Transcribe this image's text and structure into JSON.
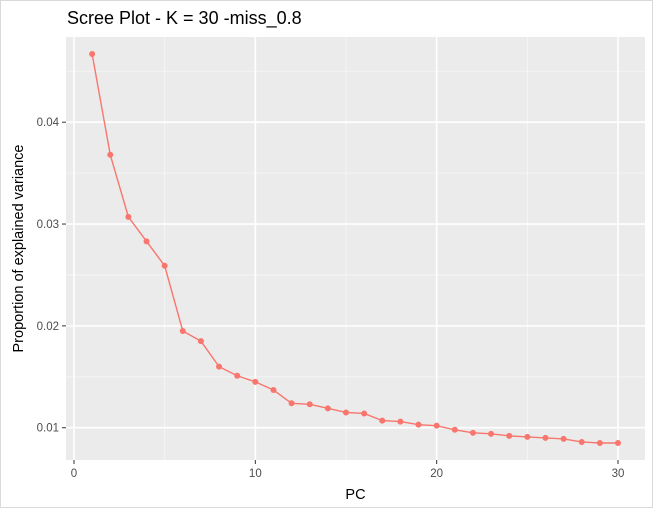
{
  "chart_data": {
    "type": "line",
    "title": "Scree Plot - K = 30 -miss_0.8",
    "xlabel": "PC",
    "ylabel": "Proportion of explained variance",
    "xlim": [
      0,
      30
    ],
    "ylim": [
      0.0085,
      0.0465
    ],
    "x_ticks": [
      0,
      10,
      20,
      30
    ],
    "y_ticks": [
      0.01,
      0.02,
      0.03,
      0.04
    ],
    "x_tick_labels": [
      "0",
      "10",
      "20",
      "30"
    ],
    "y_tick_labels": [
      "0.01",
      "0.02",
      "0.03",
      "0.04"
    ],
    "grid": true,
    "legend": "none",
    "series": [
      {
        "color": "#F8766D",
        "x": [
          1,
          2,
          3,
          4,
          5,
          6,
          7,
          8,
          9,
          10,
          11,
          12,
          13,
          14,
          15,
          16,
          17,
          18,
          19,
          20,
          21,
          22,
          23,
          24,
          25,
          26,
          27,
          28,
          29,
          30
        ],
        "values": [
          0.0467,
          0.0368,
          0.0307,
          0.0283,
          0.0259,
          0.0195,
          0.0185,
          0.016,
          0.0151,
          0.0145,
          0.0137,
          0.0124,
          0.0123,
          0.0119,
          0.0115,
          0.0114,
          0.0107,
          0.0106,
          0.0103,
          0.0102,
          0.0098,
          0.0095,
          0.0094,
          0.0092,
          0.0091,
          0.009,
          0.0089,
          0.0086,
          0.0085,
          0.0085
        ]
      }
    ]
  }
}
